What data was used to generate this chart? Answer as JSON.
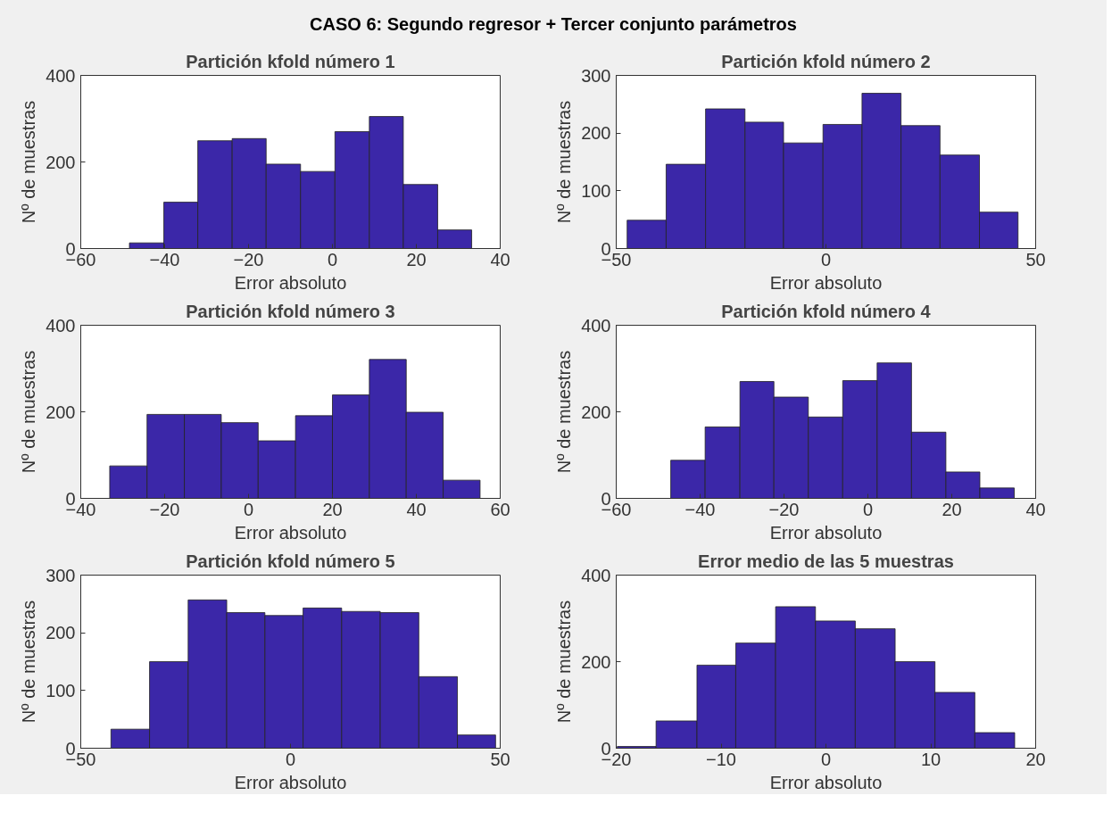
{
  "chart_data": [
    {
      "type": "other",
      "title": "CASO 6: Segundo regresor + Tercer conjunto parámetros"
    },
    {
      "type": "histogram",
      "title": "Partición kfold número 1",
      "xlabel": "Error absoluto",
      "ylabel": "Nº de muestras",
      "color": "#3b27a8",
      "bins": [
        -48.4,
        -40.2,
        -32.1,
        -23.9,
        -15.8,
        -7.6,
        0.6,
        8.8,
        16.9,
        25.1,
        33.2
      ],
      "values": [
        13,
        107,
        249,
        254,
        195,
        178,
        270,
        305,
        148,
        43
      ],
      "xlim": [
        -60,
        40
      ],
      "xticks": [
        -60,
        -40,
        -20,
        0,
        20,
        40
      ],
      "ylim": [
        0,
        400
      ],
      "yticks": [
        0,
        200,
        400
      ],
      "grid": false
    },
    {
      "type": "histogram",
      "title": "Partición kfold número 2",
      "xlabel": "Error absoluto",
      "ylabel": "Nº de muestras",
      "color": "#3b27a8",
      "bins": [
        -47.4,
        -38.1,
        -28.7,
        -19.3,
        -10.1,
        -0.7,
        8.6,
        17.9,
        27.2,
        36.6,
        45.8
      ],
      "values": [
        49,
        146,
        242,
        219,
        183,
        215,
        269,
        213,
        162,
        63
      ],
      "xlim": [
        -50,
        50
      ],
      "xticks": [
        -50,
        0,
        50
      ],
      "ylim": [
        0,
        300
      ],
      "yticks": [
        0,
        100,
        200,
        300
      ],
      "grid": false
    },
    {
      "type": "histogram",
      "title": "Partición kfold número 3",
      "xlabel": "Error absoluto",
      "ylabel": "Nº de muestras",
      "color": "#3b27a8",
      "bins": [
        -33.1,
        -24.2,
        -15.3,
        -6.5,
        2.3,
        11.2,
        20.0,
        28.8,
        37.6,
        46.4,
        55.2
      ],
      "values": [
        75,
        194,
        194,
        175,
        133,
        191,
        239,
        321,
        199,
        42
      ],
      "xlim": [
        -40,
        60
      ],
      "xticks": [
        -40,
        -20,
        0,
        20,
        40,
        60
      ],
      "ylim": [
        0,
        400
      ],
      "yticks": [
        0,
        200,
        400
      ],
      "grid": false
    },
    {
      "type": "histogram",
      "title": "Partición kfold número 4",
      "xlabel": "Error absoluto",
      "ylabel": "Nº de muestras",
      "color": "#3b27a8",
      "bins": [
        -47.0,
        -38.8,
        -30.5,
        -22.4,
        -14.2,
        -6.0,
        2.2,
        10.4,
        18.6,
        26.7,
        34.9
      ],
      "values": [
        88,
        165,
        270,
        234,
        188,
        272,
        313,
        153,
        61,
        24
      ],
      "xlim": [
        -60,
        40
      ],
      "xticks": [
        -60,
        -40,
        -20,
        0,
        20,
        40
      ],
      "ylim": [
        0,
        400
      ],
      "yticks": [
        0,
        200,
        400
      ],
      "grid": false
    },
    {
      "type": "histogram",
      "title": "Partición kfold número 5",
      "xlabel": "Error absoluto",
      "ylabel": "Nº de muestras",
      "color": "#3b27a8",
      "bins": [
        -42.8,
        -33.6,
        -24.4,
        -15.2,
        -6.1,
        3.0,
        12.2,
        21.4,
        30.6,
        39.8,
        48.9
      ],
      "values": [
        33,
        150,
        257,
        235,
        230,
        243,
        237,
        235,
        124,
        23
      ],
      "xlim": [
        -50,
        50
      ],
      "xticks": [
        -50,
        0,
        50
      ],
      "ylim": [
        0,
        300
      ],
      "yticks": [
        0,
        100,
        200,
        300
      ],
      "grid": false
    },
    {
      "type": "histogram",
      "title": "Error medio de las 5 muestras",
      "xlabel": "Error absoluto",
      "ylabel": "Nº de muestras",
      "color": "#3b27a8",
      "bins": [
        -19.9,
        -16.2,
        -12.3,
        -8.6,
        -4.8,
        -1.0,
        2.8,
        6.6,
        10.4,
        14.2,
        18.0
      ],
      "values": [
        4,
        63,
        192,
        243,
        327,
        294,
        276,
        200,
        129,
        36
      ],
      "xlim": [
        -20,
        20
      ],
      "xticks": [
        -20,
        -10,
        0,
        10,
        20
      ],
      "ylim": [
        0,
        400
      ],
      "yticks": [
        0,
        200,
        400
      ],
      "grid": false
    }
  ]
}
